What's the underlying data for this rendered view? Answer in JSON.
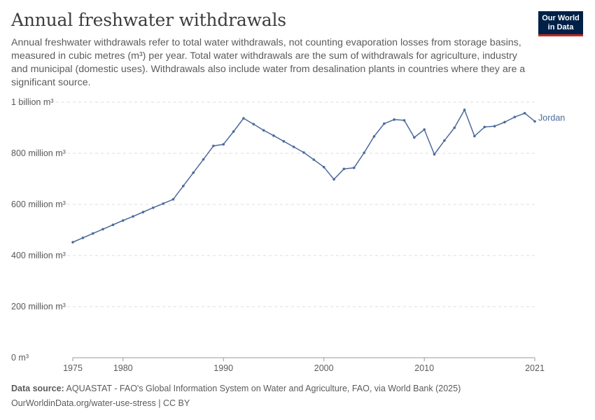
{
  "header": {
    "title": "Annual freshwater withdrawals",
    "subtitle": "Annual freshwater withdrawals refer to total water withdrawals, not counting evaporation losses from storage basins, measured in cubic metres (m³) per year. Total water withdrawals are the sum of withdrawals for agriculture, industry and municipal (domestic uses). Withdrawals also include water from desalination plants in countries where they are a significant source.",
    "logo_line1": "Our World",
    "logo_line2": "in Data"
  },
  "footer": {
    "source_label": "Data source:",
    "source_text": " AQUASTAT - FAO's Global Information System on Water and Agriculture, FAO, via World Bank (2025)",
    "link": "OurWorldinData.org/water-use-stress | CC BY"
  },
  "colors": {
    "series": "#4c6a9c",
    "grid": "#dddddd",
    "axis": "#5b5b5b"
  },
  "chart_data": {
    "type": "line",
    "title": "Annual freshwater withdrawals",
    "xlabel": "",
    "ylabel": "",
    "xlim": [
      1975,
      2021
    ],
    "ylim": [
      0,
      1000000000
    ],
    "yticks": [
      {
        "value": 0,
        "label": "0 m³"
      },
      {
        "value": 200000000,
        "label": "200 million m³"
      },
      {
        "value": 400000000,
        "label": "400 million m³"
      },
      {
        "value": 600000000,
        "label": "600 million m³"
      },
      {
        "value": 800000000,
        "label": "800 million m³"
      },
      {
        "value": 1000000000,
        "label": "1 billion m³"
      }
    ],
    "xticks": [
      {
        "value": 1975,
        "label": "1975"
      },
      {
        "value": 1980,
        "label": "1980"
      },
      {
        "value": 1990,
        "label": "1990"
      },
      {
        "value": 2000,
        "label": "2000"
      },
      {
        "value": 2010,
        "label": "2010"
      },
      {
        "value": 2021,
        "label": "2021"
      }
    ],
    "series": [
      {
        "name": "Jordan",
        "x": [
          1975,
          1976,
          1977,
          1978,
          1979,
          1980,
          1981,
          1982,
          1983,
          1984,
          1985,
          1986,
          1987,
          1988,
          1989,
          1990,
          1991,
          1992,
          1993,
          1994,
          1995,
          1996,
          1997,
          1998,
          1999,
          2000,
          2001,
          2002,
          2003,
          2004,
          2005,
          2006,
          2007,
          2008,
          2009,
          2010,
          2011,
          2012,
          2013,
          2014,
          2015,
          2016,
          2017,
          2018,
          2019,
          2020,
          2021
        ],
        "values": [
          452000000,
          469000000,
          486000000,
          503000000,
          520000000,
          537000000,
          553000000,
          570000000,
          587000000,
          603000000,
          620000000,
          672000000,
          724000000,
          776000000,
          829000000,
          835000000,
          885000000,
          937000000,
          914000000,
          890000000,
          869000000,
          847000000,
          825000000,
          803000000,
          775000000,
          746000000,
          698000000,
          739000000,
          743000000,
          802000000,
          866000000,
          916000000,
          932000000,
          929000000,
          862000000,
          893000000,
          796000000,
          850000000,
          900000000,
          970000000,
          867000000,
          903000000,
          906000000,
          922000000,
          942000000,
          957000000,
          925000000
        ]
      }
    ]
  }
}
